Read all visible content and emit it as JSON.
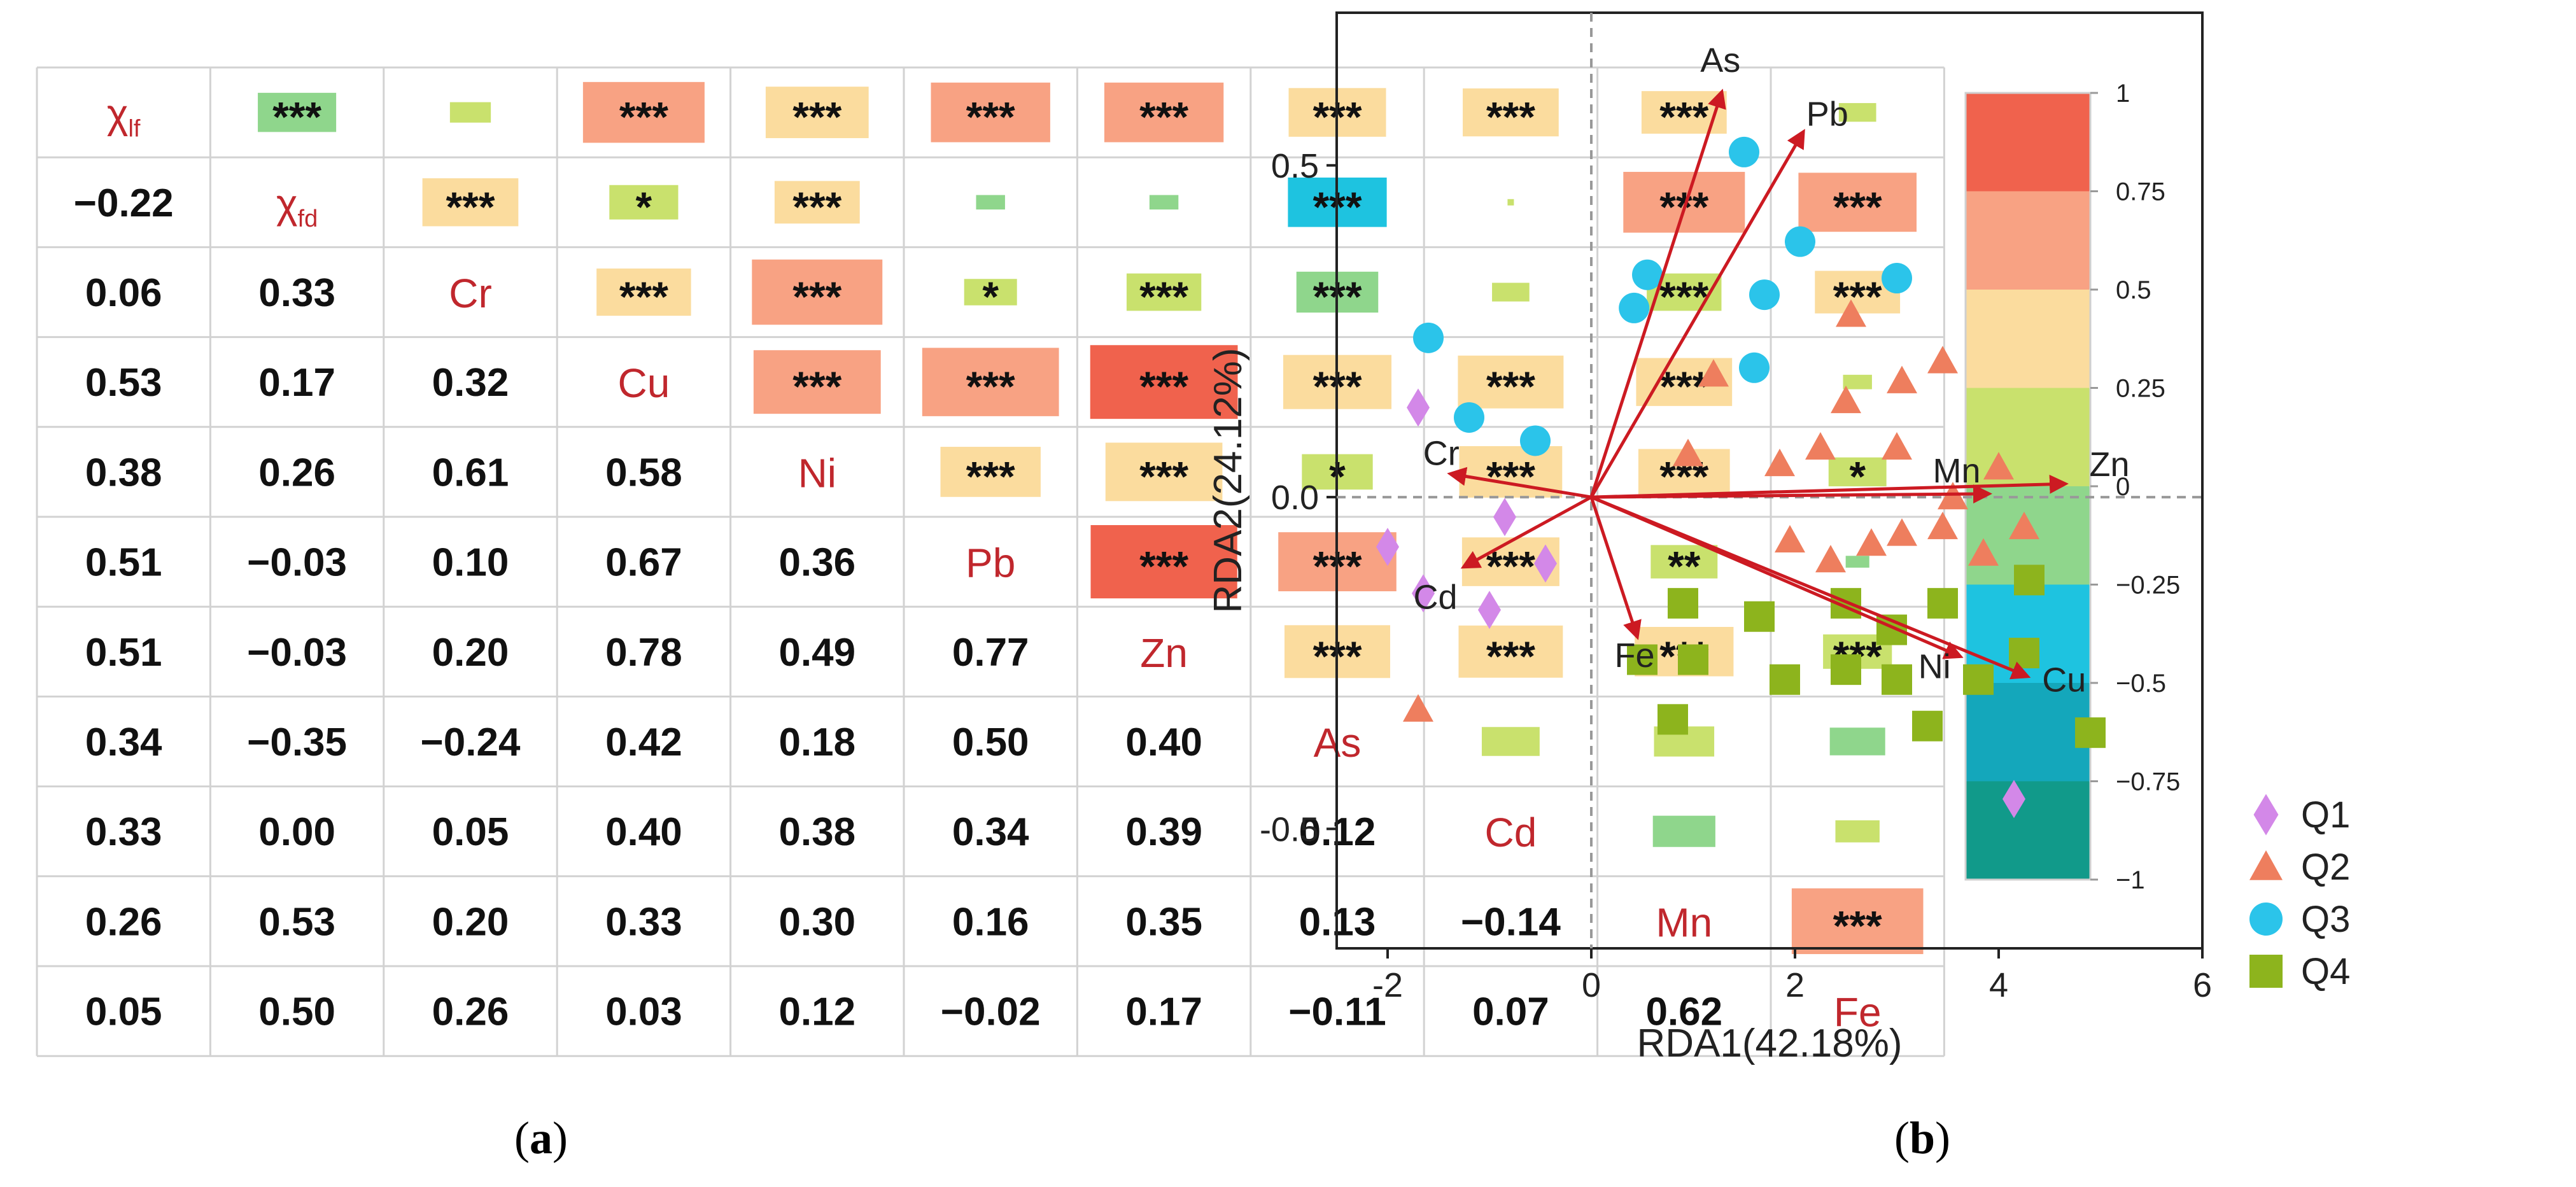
{
  "figure": {
    "panel_a_label": "a",
    "panel_b_label": "b"
  },
  "chart_data": [
    {
      "type": "heatmap",
      "subtype": "correlation-matrix",
      "variables": [
        {
          "name": "χ",
          "sub": "lf"
        },
        {
          "name": "χ",
          "sub": "fd"
        },
        {
          "name": "Cr",
          "sub": ""
        },
        {
          "name": "Cu",
          "sub": ""
        },
        {
          "name": "Ni",
          "sub": ""
        },
        {
          "name": "Pb",
          "sub": ""
        },
        {
          "name": "Zn",
          "sub": ""
        },
        {
          "name": "As",
          "sub": ""
        },
        {
          "name": "Cd",
          "sub": ""
        },
        {
          "name": "Mn",
          "sub": ""
        },
        {
          "name": "Fe",
          "sub": ""
        }
      ],
      "lower_values": [
        [],
        [
          "−0.22"
        ],
        [
          "0.06",
          "0.33"
        ],
        [
          "0.53",
          "0.17",
          "0.32"
        ],
        [
          "0.38",
          "0.26",
          "0.61",
          "0.58"
        ],
        [
          "0.51",
          "−0.03",
          "0.10",
          "0.67",
          "0.36"
        ],
        [
          "0.51",
          "−0.03",
          "0.20",
          "0.78",
          "0.49",
          "0.77"
        ],
        [
          "0.34",
          "−0.35",
          "−0.24",
          "0.42",
          "0.18",
          "0.50",
          "0.40"
        ],
        [
          "0.33",
          "0.00",
          "0.05",
          "0.40",
          "0.38",
          "0.34",
          "0.39",
          "0.12"
        ],
        [
          "0.26",
          "0.53",
          "0.20",
          "0.33",
          "0.30",
          "0.16",
          "0.35",
          "0.13",
          "−0.14"
        ],
        [
          "0.05",
          "0.50",
          "0.26",
          "0.03",
          "0.12",
          "−0.02",
          "0.17",
          "−0.11",
          "0.07",
          "0.62"
        ]
      ],
      "upper_significance": [
        [
          "***",
          "",
          "***",
          "***",
          "***",
          "***",
          "***",
          "***",
          "***",
          ""
        ],
        [
          "***",
          "*",
          "***",
          "",
          "",
          "***",
          "",
          "***",
          "***"
        ],
        [
          "***",
          "***",
          "*",
          "***",
          "***",
          "",
          "***",
          "***"
        ],
        [
          "***",
          "***",
          "***",
          "***",
          "***",
          "***",
          ""
        ],
        [
          "***",
          "***",
          "*",
          "***",
          "***",
          "*"
        ],
        [
          "***",
          "***",
          "***",
          "**",
          ""
        ],
        [
          "***",
          "***",
          "***",
          "***"
        ],
        [
          "",
          "",
          ""
        ],
        [
          "",
          ""
        ],
        [
          "***"
        ]
      ],
      "colorbar": {
        "range": [
          -1,
          1
        ],
        "ticks": [
          "1",
          "0.75",
          "0.5",
          "0.25",
          "0",
          "−0.25",
          "−0.5",
          "−0.75",
          "−1"
        ],
        "bins": [
          {
            "from": 0.75,
            "to": 1.0,
            "color": "#f0624d"
          },
          {
            "from": 0.5,
            "to": 0.75,
            "color": "#f8a283"
          },
          {
            "from": 0.25,
            "to": 0.5,
            "color": "#fbdc9e"
          },
          {
            "from": 0.0,
            "to": 0.25,
            "color": "#c9e16d"
          },
          {
            "from": -0.25,
            "to": 0.0,
            "color": "#8fd68c"
          },
          {
            "from": -0.5,
            "to": -0.25,
            "color": "#1ec3e0"
          },
          {
            "from": -0.75,
            "to": -0.5,
            "color": "#14a7bb"
          },
          {
            "from": -1.0,
            "to": -0.75,
            "color": "#119a8a"
          }
        ]
      }
    },
    {
      "type": "scatter",
      "subtype": "rda-biplot",
      "xlabel": "RDA1(42.18%)",
      "ylabel": "RDA2(24.12%)",
      "xlim": [
        -2.5,
        6.0
      ],
      "ylim": [
        -0.68,
        0.73
      ],
      "xticks": [
        {
          "v": -2,
          "t": "-2"
        },
        {
          "v": 0,
          "t": "0"
        },
        {
          "v": 2,
          "t": "2"
        },
        {
          "v": 4,
          "t": "4"
        },
        {
          "v": 6,
          "t": "6"
        }
      ],
      "yticks": [
        {
          "v": 0.5,
          "t": "0.5"
        },
        {
          "v": 0.0,
          "t": "0.0"
        },
        {
          "v": -0.5,
          "t": "-0.5"
        }
      ],
      "arrow_color": "#cc1a22",
      "arrows": [
        {
          "label": "As",
          "x": 1.28,
          "y": 0.61
        },
        {
          "label": "Pb",
          "x": 2.08,
          "y": 0.55
        },
        {
          "label": "Mn",
          "x": 3.9,
          "y": 0.005
        },
        {
          "label": "Zn",
          "x": 4.65,
          "y": 0.02
        },
        {
          "label": "Cu",
          "x": 4.28,
          "y": -0.27
        },
        {
          "label": "Ni",
          "x": 3.62,
          "y": -0.24
        },
        {
          "label": "Fe",
          "x": 0.45,
          "y": -0.21
        },
        {
          "label": "Cr",
          "x": -1.38,
          "y": 0.035
        },
        {
          "label": "Cd",
          "x": -1.25,
          "y": -0.105
        }
      ],
      "series": [
        {
          "name": "Q1",
          "marker": "diamond",
          "color": "#d388e8",
          "points": [
            [
              -1.7,
              0.135
            ],
            [
              -2.0,
              -0.075
            ],
            [
              -1.65,
              -0.145
            ],
            [
              -0.85,
              -0.03
            ],
            [
              -1.0,
              -0.17
            ],
            [
              -0.45,
              -0.1
            ],
            [
              4.15,
              -0.455
            ]
          ]
        },
        {
          "name": "Q2",
          "marker": "triangle",
          "color": "#ee7e5e",
          "points": [
            [
              2.55,
              0.275
            ],
            [
              3.45,
              0.205
            ],
            [
              1.2,
              0.185
            ],
            [
              3.05,
              0.175
            ],
            [
              2.5,
              0.145
            ],
            [
              1.85,
              0.05
            ],
            [
              0.95,
              0.065
            ],
            [
              2.25,
              0.075
            ],
            [
              3.0,
              0.075
            ],
            [
              4.0,
              0.045
            ],
            [
              3.55,
              0.0
            ],
            [
              1.95,
              -0.065
            ],
            [
              3.05,
              -0.055
            ],
            [
              2.75,
              -0.07
            ],
            [
              3.45,
              -0.045
            ],
            [
              4.25,
              -0.045
            ],
            [
              2.35,
              -0.095
            ],
            [
              3.85,
              -0.085
            ],
            [
              -1.7,
              -0.32
            ]
          ]
        },
        {
          "name": "Q3",
          "marker": "circle",
          "color": "#2bc4ea",
          "points": [
            [
              1.5,
              0.52
            ],
            [
              2.05,
              0.385
            ],
            [
              3.0,
              0.33
            ],
            [
              0.55,
              0.335
            ],
            [
              1.7,
              0.305
            ],
            [
              0.42,
              0.285
            ],
            [
              -1.6,
              0.24
            ],
            [
              1.6,
              0.195
            ],
            [
              -1.2,
              0.12
            ],
            [
              -0.55,
              0.085
            ]
          ]
        },
        {
          "name": "Q4",
          "marker": "square",
          "color": "#8db41d",
          "points": [
            [
              0.9,
              -0.16
            ],
            [
              1.65,
              -0.18
            ],
            [
              2.5,
              -0.16
            ],
            [
              3.45,
              -0.16
            ],
            [
              4.3,
              -0.125
            ],
            [
              2.95,
              -0.2
            ],
            [
              0.5,
              -0.245
            ],
            [
              1.0,
              -0.245
            ],
            [
              1.9,
              -0.275
            ],
            [
              2.5,
              -0.26
            ],
            [
              3.0,
              -0.275
            ],
            [
              3.8,
              -0.275
            ],
            [
              4.25,
              -0.235
            ],
            [
              0.8,
              -0.335
            ],
            [
              3.3,
              -0.345
            ],
            [
              4.9,
              -0.355
            ]
          ]
        }
      ]
    }
  ]
}
